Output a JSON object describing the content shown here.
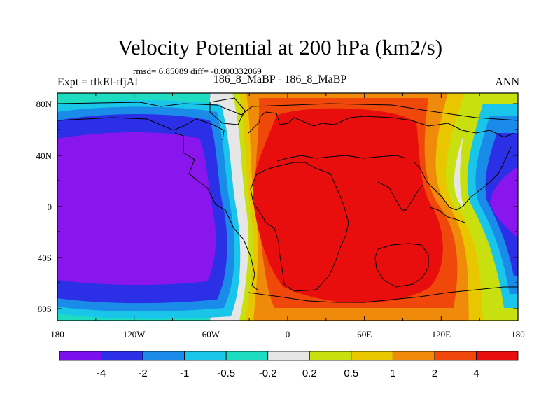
{
  "title": "Velocity Potential at 200 hPa (km2/s)",
  "stats": "rmsd= 6.85089 diff= -0.000332069",
  "left_label": "Expt = tfkEl-tfjAl",
  "center_label": "186_8_MaBP - 186_8_MaBP",
  "right_label": "ANN",
  "map": {
    "lat_ticks": [
      "80N",
      "40N",
      "0",
      "40S",
      "80S"
    ],
    "lon_ticks": [
      "180",
      "120W",
      "60W",
      "0",
      "60E",
      "120E",
      "180"
    ]
  },
  "colorbar": {
    "levels": [
      "-4",
      "-2",
      "-1",
      "-0.5",
      "-0.2",
      "0.2",
      "0.5",
      "1",
      "2",
      "4"
    ],
    "colors": [
      "#7a10ec",
      "#2b2fe6",
      "#1a8be8",
      "#19c6ea",
      "#1edcc0",
      "#e6e6e6",
      "#c8e00f",
      "#e8c600",
      "#f08a0a",
      "#f0480a",
      "#e80e0e"
    ]
  },
  "colors": {
    "purple": "#8a16ee",
    "blue": "#2b2fe6",
    "med_blue": "#1a8be8",
    "cyan": "#19c6ea",
    "teal": "#1edcc0",
    "gray": "#e6e6e6",
    "yellowgreen": "#c8e00f",
    "gold": "#e8c600",
    "orange": "#f08a0a",
    "red_orange": "#f0480a",
    "red": "#e80e0e"
  }
}
